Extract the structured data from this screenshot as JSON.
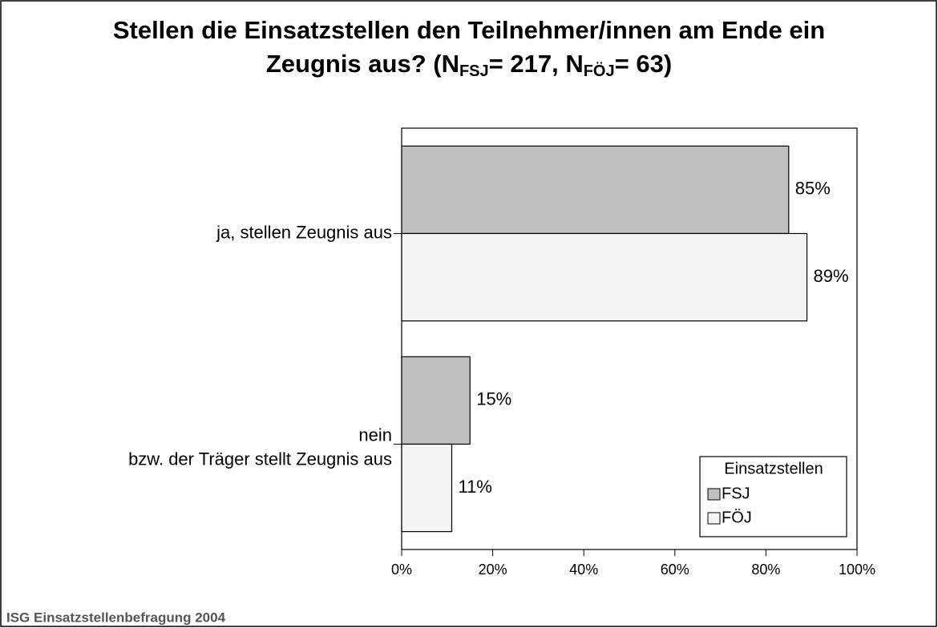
{
  "chart_data": {
    "type": "barh",
    "title_lines": [
      [
        {
          "text": "Stellen die Einsatzstellen den Teilnehmer/innen am Ende ein"
        }
      ],
      [
        {
          "text": "Zeugnis aus? (N"
        },
        {
          "text": "FSJ",
          "sub": true
        },
        {
          "text": "= 217, N"
        },
        {
          "text": "FÖJ",
          "sub": true
        },
        {
          "text": "= 63)"
        }
      ]
    ],
    "categories": [
      [
        "ja, stellen Zeugnis aus"
      ],
      [
        "nein",
        "bzw. der Träger stellt Zeugnis aus"
      ]
    ],
    "series": [
      {
        "name": "FSJ",
        "color": "#c0c0c0",
        "values": [
          85,
          15
        ],
        "value_labels": [
          "85%",
          "15%"
        ]
      },
      {
        "name": "FÖJ",
        "color": "#f4f4f4",
        "values": [
          89,
          11
        ],
        "value_labels": [
          "89%",
          "11%"
        ]
      }
    ],
    "xlim": [
      0,
      100
    ],
    "xticks": [
      {
        "value": 0,
        "label": "0%"
      },
      {
        "value": 20,
        "label": "20%"
      },
      {
        "value": 40,
        "label": "40%"
      },
      {
        "value": 60,
        "label": "60%"
      },
      {
        "value": 80,
        "label": "80%"
      },
      {
        "value": 100,
        "label": "100%"
      }
    ],
    "legend_title": "Einsatzstellen",
    "legend_position": "lower right",
    "source": "ISG Einsatzstellenbefragung 2004"
  }
}
